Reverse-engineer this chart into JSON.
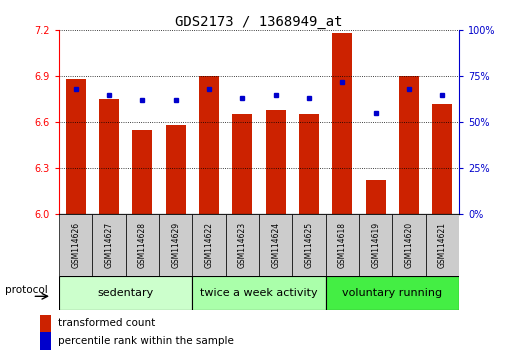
{
  "title": "GDS2173 / 1368949_at",
  "samples": [
    "GSM114626",
    "GSM114627",
    "GSM114628",
    "GSM114629",
    "GSM114622",
    "GSM114623",
    "GSM114624",
    "GSM114625",
    "GSM114618",
    "GSM114619",
    "GSM114620",
    "GSM114621"
  ],
  "red_values": [
    6.88,
    6.75,
    6.55,
    6.58,
    6.9,
    6.65,
    6.68,
    6.65,
    7.18,
    6.22,
    6.9,
    6.72
  ],
  "blue_values": [
    68,
    65,
    62,
    62,
    68,
    63,
    65,
    63,
    72,
    55,
    68,
    65
  ],
  "ylim_left": [
    6.0,
    7.2
  ],
  "ylim_right": [
    0,
    100
  ],
  "yticks_left": [
    6.0,
    6.3,
    6.6,
    6.9,
    7.2
  ],
  "yticks_right": [
    0,
    25,
    50,
    75,
    100
  ],
  "ytick_labels_right": [
    "0%",
    "25%",
    "50%",
    "75%",
    "100%"
  ],
  "groups": [
    {
      "label": "sedentary",
      "start": 0,
      "end": 4,
      "color": "#ccffcc"
    },
    {
      "label": "twice a week activity",
      "start": 4,
      "end": 8,
      "color": "#aaffaa"
    },
    {
      "label": "voluntary running",
      "start": 8,
      "end": 12,
      "color": "#44ee44"
    }
  ],
  "bar_color": "#cc2200",
  "dot_color": "#0000cc",
  "bar_bottom": 6.0,
  "legend_red_label": "transformed count",
  "legend_blue_label": "percentile rank within the sample",
  "protocol_label": "protocol",
  "title_fontsize": 10,
  "tick_fontsize": 7,
  "group_label_fontsize": 8,
  "legend_fontsize": 7.5,
  "background_color": "#ffffff",
  "sample_box_color": "#cccccc",
  "gridline_color": "#000000"
}
